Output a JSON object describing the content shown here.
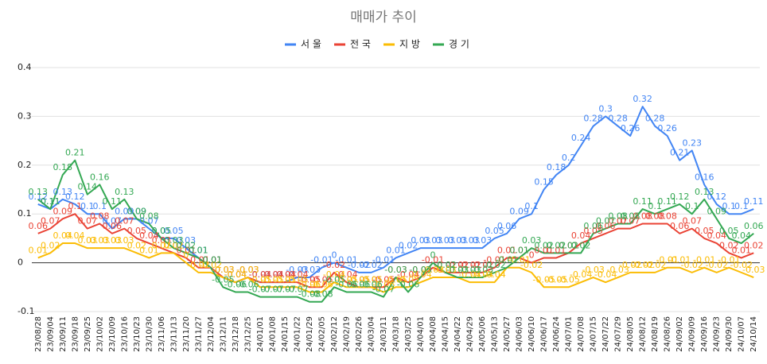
{
  "chart_data": {
    "type": "line",
    "title": "매매가 추이",
    "categories": [
      "23/08/28",
      "23/09/04",
      "23/09/11",
      "23/09/18",
      "23/09/25",
      "23/10/02",
      "23/10/09",
      "23/10/16",
      "23/10/23",
      "23/10/30",
      "23/11/06",
      "23/11/13",
      "23/11/20",
      "23/11/27",
      "23/12/04",
      "23/12/11",
      "23/12/18",
      "23/12/25",
      "24/01/01",
      "24/01/08",
      "24/01/15",
      "24/01/22",
      "24/01/29",
      "24/02/05",
      "24/02/12",
      "24/02/19",
      "24/02/26",
      "24/03/04",
      "24/03/11",
      "24/03/18",
      "24/03/25",
      "24/04/01",
      "24/04/08",
      "24/04/15",
      "24/04/22",
      "24/04/29",
      "24/05/06",
      "24/05/13",
      "24/05/27",
      "24/06/03",
      "24/06/10",
      "24/06/17",
      "24/06/24",
      "24/07/01",
      "24/07/08",
      "24/07/15",
      "24/07/22",
      "24/07/29",
      "24/08/05",
      "24/08/12",
      "24/08/19",
      "24/08/26",
      "24/09/02",
      "24/09/09",
      "24/09/16",
      "24/09/23",
      "24/09/30",
      "24/10/07",
      "24/10/14"
    ],
    "series": [
      {
        "name": "서 울",
        "color": "#4285f4",
        "values": [
          0.12,
          0.11,
          0.13,
          0.12,
          0.1,
          0.1,
          0.07,
          0.09,
          0.09,
          0.07,
          0.05,
          0.05,
          0.03,
          0.01,
          -0.01,
          -0.03,
          -0.04,
          -0.03,
          -0.04,
          -0.04,
          -0.04,
          -0.03,
          -0.03,
          -0.01,
          0,
          -0.01,
          -0.02,
          -0.02,
          -0.01,
          0.01,
          0.02,
          0.03,
          0.03,
          0.03,
          0.03,
          0.03,
          0.03,
          0.05,
          0.06,
          0.09,
          0.1,
          0.15,
          0.18,
          0.2,
          0.24,
          0.28,
          0.3,
          0.28,
          0.26,
          0.32,
          0.28,
          0.26,
          0.21,
          0.23,
          0.16,
          0.12,
          0.1,
          0.1,
          0.11
        ]
      },
      {
        "name": "전 국",
        "color": "#ea4335",
        "values": [
          0.06,
          0.07,
          0.09,
          0.1,
          0.07,
          0.08,
          0.06,
          0.07,
          0.05,
          0.04,
          0.03,
          0.02,
          0.01,
          -0.01,
          -0.01,
          -0.03,
          -0.04,
          -0.03,
          -0.04,
          -0.04,
          -0.04,
          -0.04,
          -0.05,
          -0.05,
          -0.02,
          -0.04,
          -0.05,
          -0.05,
          -0.05,
          -0.03,
          -0.04,
          -0.03,
          -0.01,
          -0.02,
          -0.02,
          -0.02,
          -0.02,
          -0.01,
          0.01,
          0.01,
          0,
          0.01,
          0.01,
          0.02,
          0.04,
          0.05,
          0.06,
          0.07,
          0.07,
          0.08,
          0.08,
          0.08,
          0.06,
          0.07,
          0.05,
          0.04,
          0.02,
          0.01,
          0.02
        ]
      },
      {
        "name": "지 방",
        "color": "#fbbc04",
        "values": [
          0.01,
          0.02,
          0.04,
          0.04,
          0.03,
          0.03,
          0.03,
          0.03,
          0.02,
          0.01,
          0.02,
          0.02,
          0,
          -0.02,
          -0.02,
          -0.03,
          -0.04,
          -0.03,
          -0.05,
          -0.05,
          -0.05,
          -0.05,
          -0.06,
          -0.06,
          -0.04,
          -0.05,
          -0.05,
          -0.05,
          -0.06,
          -0.05,
          -0.05,
          -0.04,
          -0.03,
          -0.03,
          -0.03,
          -0.04,
          -0.04,
          -0.04,
          -0.01,
          -0.01,
          -0.02,
          -0.05,
          -0.05,
          -0.05,
          -0.04,
          -0.03,
          -0.04,
          -0.03,
          -0.02,
          -0.02,
          -0.02,
          -0.01,
          -0.01,
          -0.02,
          -0.01,
          -0.02,
          -0.01,
          -0.02,
          -0.03
        ]
      },
      {
        "name": "경 기",
        "color": "#34a853",
        "values": [
          0.13,
          0.11,
          0.18,
          0.21,
          0.14,
          0.16,
          0.11,
          0.13,
          0.09,
          0.08,
          0.05,
          0.03,
          0.02,
          0.01,
          -0.01,
          -0.05,
          -0.06,
          -0.06,
          -0.07,
          -0.07,
          -0.07,
          -0.07,
          -0.08,
          -0.08,
          -0.05,
          -0.06,
          -0.06,
          -0.06,
          -0.07,
          -0.03,
          -0.06,
          -0.03,
          0,
          -0.02,
          -0.03,
          -0.03,
          -0.03,
          -0.02,
          -0.01,
          0.01,
          0.03,
          0.02,
          0.02,
          0.02,
          0.02,
          0.06,
          0.07,
          0.08,
          0.08,
          0.11,
          0.1,
          0.11,
          0.12,
          0.1,
          0.13,
          0.09,
          0.05,
          0.04,
          0.06
        ]
      }
    ],
    "ylim": [
      -0.1,
      0.4
    ],
    "yticks": [
      -0.1,
      0,
      0.1,
      0.2,
      0.3,
      0.4
    ],
    "grid": true,
    "legend": "top",
    "data_labels": true
  }
}
